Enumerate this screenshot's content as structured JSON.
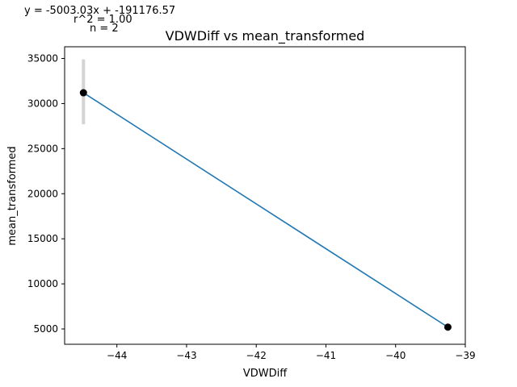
{
  "chart_data": {
    "type": "line",
    "title": "VDWDiff vs mean_transformed",
    "xlabel": "VDWDiff",
    "ylabel": "mean_transformed",
    "xlim": [
      -44.75,
      -39.0
    ],
    "ylim": [
      3300,
      36300
    ],
    "xticks": [
      -44,
      -43,
      -42,
      -41,
      -40,
      -39
    ],
    "xtick_labels": [
      "−44",
      "−43",
      "−42",
      "−41",
      "−40",
      "−39"
    ],
    "yticks": [
      5000,
      10000,
      15000,
      20000,
      25000,
      30000,
      35000
    ],
    "ytick_labels": [
      "5000",
      "10000",
      "15000",
      "20000",
      "25000",
      "30000",
      "35000"
    ],
    "grid": false,
    "series": [
      {
        "x": [
          -44.48,
          -39.25
        ],
        "y": [
          31200,
          5200
        ],
        "error_low": [
          27700,
          null
        ],
        "error_high": [
          34900,
          null
        ],
        "line_color": "#1f77b4",
        "marker_color": "#000000",
        "error_color": "#d3d3d3"
      }
    ],
    "annotations": [
      "y = -5003.03x + -191176.57",
      "r^2 = 1.00",
      "n = 2"
    ]
  }
}
